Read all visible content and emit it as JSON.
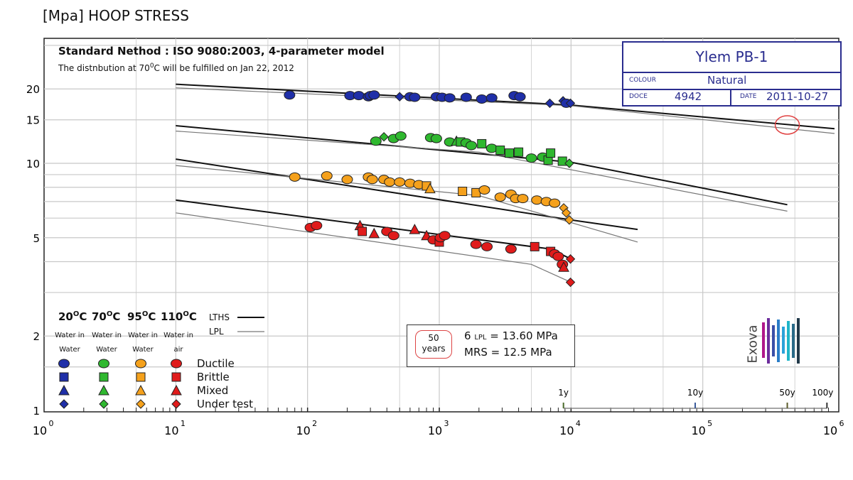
{
  "title": "[Mpa] HOOP STRESS",
  "header": {
    "line1": "Standard Nethod : ISO 9080:2003, 4-parameter model",
    "line2_pre": "The distnbution at 70",
    "line2_sup": "0",
    "line2_post": "C will be fulfilled on Jan 22, 2012"
  },
  "infobox": {
    "product": "Ylem PB-1",
    "colour_label": "COLOUR",
    "colour_value": "Natural",
    "doce_label": "DOCE",
    "doce_value": "4942",
    "date_label": "DATE",
    "date_value": "2011-10-27"
  },
  "legend": {
    "temps": [
      {
        "t": "20",
        "sup": "O",
        "unit": "C",
        "env": [
          "Water in",
          "Water"
        ],
        "color": "#1f2fa8"
      },
      {
        "t": "70",
        "sup": "O",
        "unit": "C",
        "env": [
          "Water in",
          "Water"
        ],
        "color": "#2fb82f"
      },
      {
        "t": "95",
        "sup": "O",
        "unit": "C",
        "env": [
          "Water in",
          "Water"
        ],
        "color": "#f5a11c"
      },
      {
        "t": "110",
        "sup": "O",
        "unit": "C",
        "env": [
          "Water in",
          "air"
        ],
        "color": "#e01b1b"
      }
    ],
    "types": [
      "Ductile",
      "Brittle",
      "Mixed",
      "Under test"
    ],
    "lths": "LTHS",
    "lpl": "LPL"
  },
  "mrs_box": {
    "years_num": "50",
    "years_word": "years",
    "lpl_sym": "6",
    "lpl_sub": "LPL",
    "lpl_val": "= 13.60 MPa",
    "mrs": "MRS = 12.5 MPa"
  },
  "logo": {
    "text": "Exova"
  },
  "chart_data": {
    "type": "scatter",
    "x_scale": "log",
    "y_scale": "log",
    "xlim": [
      1,
      1000000
    ],
    "ylim": [
      1,
      30
    ],
    "grid": true,
    "ylabel": "[Mpa] HOOP STRESS",
    "x_ticks": [
      {
        "base": "10",
        "exp": "0",
        "v": 1
      },
      {
        "base": "10",
        "exp": "1",
        "v": 10
      },
      {
        "base": "10",
        "exp": "2",
        "v": 100
      },
      {
        "base": "10",
        "exp": "3",
        "v": 1000
      },
      {
        "base": "10",
        "exp": "4",
        "v": 10000
      },
      {
        "base": "10",
        "exp": "5",
        "v": 100000
      },
      {
        "base": "10",
        "exp": "6",
        "v": 1000000
      }
    ],
    "y_ticks": [
      {
        "label": "20",
        "v": 20
      },
      {
        "label": "15",
        "v": 15
      },
      {
        "label": "10",
        "v": 10
      },
      {
        "label": "5",
        "v": 5
      },
      {
        "label": "2",
        "v": 2
      },
      {
        "label": "1",
        "v": 1
      }
    ],
    "time_marks": [
      {
        "label": "1y",
        "x": 8760
      },
      {
        "label": "10y",
        "x": 87600
      },
      {
        "label": "50y",
        "x": 438000
      },
      {
        "label": "100y",
        "x": 876000
      }
    ],
    "lines": [
      {
        "name": "LTHS",
        "temp": "20",
        "points": [
          [
            10,
            20.9
          ],
          [
            10000,
            17.2
          ],
          [
            1000000,
            13.8
          ]
        ]
      },
      {
        "name": "LPL",
        "temp": "20",
        "points": [
          [
            10,
            20.2
          ],
          [
            10000,
            17.1
          ],
          [
            1000000,
            13.2
          ]
        ]
      },
      {
        "name": "LTHS",
        "temp": "70",
        "points": [
          [
            10,
            14.2
          ],
          [
            10000,
            10.1
          ],
          [
            438000,
            6.8
          ]
        ]
      },
      {
        "name": "LPL",
        "temp": "70",
        "points": [
          [
            10,
            13.5
          ],
          [
            2000,
            11.1
          ],
          [
            438000,
            6.4
          ]
        ]
      },
      {
        "name": "LTHS",
        "temp": "95",
        "points": [
          [
            10,
            10.4
          ],
          [
            10000,
            5.9
          ],
          [
            32000,
            5.4
          ]
        ]
      },
      {
        "name": "LPL",
        "temp": "95",
        "points": [
          [
            10,
            9.8
          ],
          [
            2000,
            7.4
          ],
          [
            32000,
            4.8
          ]
        ]
      },
      {
        "name": "LTHS",
        "temp": "110",
        "points": [
          [
            10,
            7.1
          ],
          [
            7000,
            4.5
          ],
          [
            10000,
            4.1
          ]
        ]
      },
      {
        "name": "LPL",
        "temp": "110",
        "points": [
          [
            10,
            6.3
          ],
          [
            5000,
            3.9
          ],
          [
            10000,
            3.3
          ]
        ]
      }
    ],
    "series": [
      {
        "temp": "20",
        "points": [
          [
            73,
            18.9,
            "ductile"
          ],
          [
            210,
            18.8,
            "ductile"
          ],
          [
            245,
            18.8,
            "ductile"
          ],
          [
            290,
            18.6,
            "ductile"
          ],
          [
            300,
            18.8,
            "ductile"
          ],
          [
            320,
            18.9,
            "ductile"
          ],
          [
            500,
            18.6,
            "under"
          ],
          [
            600,
            18.6,
            "ductile"
          ],
          [
            650,
            18.5,
            "ductile"
          ],
          [
            950,
            18.6,
            "ductile"
          ],
          [
            1050,
            18.5,
            "ductile"
          ],
          [
            1200,
            18.4,
            "ductile"
          ],
          [
            1600,
            18.5,
            "ductile"
          ],
          [
            2100,
            18.2,
            "ductile"
          ],
          [
            2500,
            18.4,
            "ductile"
          ],
          [
            3700,
            18.8,
            "ductile"
          ],
          [
            4100,
            18.6,
            "ductile"
          ],
          [
            6900,
            17.5,
            "under"
          ],
          [
            8700,
            17.9,
            "under"
          ],
          [
            9200,
            17.5,
            "ductile"
          ],
          [
            9900,
            17.5,
            "under"
          ]
        ]
      },
      {
        "temp": "70",
        "points": [
          [
            330,
            12.3,
            "ductile"
          ],
          [
            380,
            12.8,
            "under"
          ],
          [
            450,
            12.6,
            "ductile"
          ],
          [
            510,
            12.9,
            "ductile"
          ],
          [
            860,
            12.7,
            "ductile"
          ],
          [
            950,
            12.6,
            "ductile"
          ],
          [
            1200,
            12.2,
            "ductile"
          ],
          [
            1350,
            12.3,
            "mixed"
          ],
          [
            1450,
            12.2,
            "brittle"
          ],
          [
            1600,
            12.1,
            "ductile"
          ],
          [
            1750,
            11.8,
            "ductile"
          ],
          [
            2100,
            12.0,
            "brittle"
          ],
          [
            2500,
            11.5,
            "ductile"
          ],
          [
            2900,
            11.3,
            "brittle"
          ],
          [
            3400,
            11.0,
            "brittle"
          ],
          [
            4000,
            11.1,
            "brittle"
          ],
          [
            5000,
            10.5,
            "ductile"
          ],
          [
            6100,
            10.6,
            "ductile"
          ],
          [
            6700,
            10.3,
            "brittle"
          ],
          [
            7000,
            11.0,
            "brittle"
          ],
          [
            8600,
            10.2,
            "brittle"
          ],
          [
            9700,
            10.0,
            "under"
          ]
        ]
      },
      {
        "temp": "95",
        "points": [
          [
            80,
            8.8,
            "ductile"
          ],
          [
            140,
            8.9,
            "ductile"
          ],
          [
            200,
            8.6,
            "ductile"
          ],
          [
            290,
            8.8,
            "ductile"
          ],
          [
            310,
            8.6,
            "ductile"
          ],
          [
            380,
            8.6,
            "ductile"
          ],
          [
            420,
            8.4,
            "ductile"
          ],
          [
            500,
            8.4,
            "ductile"
          ],
          [
            600,
            8.3,
            "ductile"
          ],
          [
            700,
            8.2,
            "ductile"
          ],
          [
            800,
            8.1,
            "brittle"
          ],
          [
            850,
            7.9,
            "mixed"
          ],
          [
            1500,
            7.7,
            "brittle"
          ],
          [
            1900,
            7.6,
            "brittle"
          ],
          [
            2200,
            7.8,
            "ductile"
          ],
          [
            2900,
            7.3,
            "ductile"
          ],
          [
            3500,
            7.5,
            "ductile"
          ],
          [
            3800,
            7.2,
            "ductile"
          ],
          [
            4300,
            7.2,
            "ductile"
          ],
          [
            5500,
            7.1,
            "ductile"
          ],
          [
            6500,
            7.0,
            "ductile"
          ],
          [
            7500,
            6.9,
            "ductile"
          ],
          [
            8800,
            6.6,
            "under"
          ],
          [
            9200,
            6.3,
            "under"
          ],
          [
            9700,
            5.9,
            "under"
          ]
        ]
      },
      {
        "temp": "110",
        "points": [
          [
            105,
            5.5,
            "ductile"
          ],
          [
            117,
            5.6,
            "ductile"
          ],
          [
            250,
            5.6,
            "mixed"
          ],
          [
            260,
            5.3,
            "brittle"
          ],
          [
            320,
            5.2,
            "mixed"
          ],
          [
            400,
            5.3,
            "ductile"
          ],
          [
            450,
            5.1,
            "ductile"
          ],
          [
            650,
            5.4,
            "mixed"
          ],
          [
            800,
            5.1,
            "mixed"
          ],
          [
            900,
            4.9,
            "ductile"
          ],
          [
            1000,
            4.8,
            "brittle"
          ],
          [
            1020,
            5.0,
            "ductile"
          ],
          [
            1100,
            5.1,
            "ductile"
          ],
          [
            1900,
            4.7,
            "ductile"
          ],
          [
            2300,
            4.6,
            "ductile"
          ],
          [
            3500,
            4.5,
            "ductile"
          ],
          [
            5300,
            4.6,
            "brittle"
          ],
          [
            7000,
            4.4,
            "brittle"
          ],
          [
            7500,
            4.3,
            "ductile"
          ],
          [
            8000,
            4.2,
            "ductile"
          ],
          [
            8600,
            3.9,
            "ductile"
          ],
          [
            8800,
            3.8,
            "mixed"
          ],
          [
            9900,
            4.1,
            "under"
          ],
          [
            9900,
            3.3,
            "under"
          ]
        ]
      }
    ]
  }
}
